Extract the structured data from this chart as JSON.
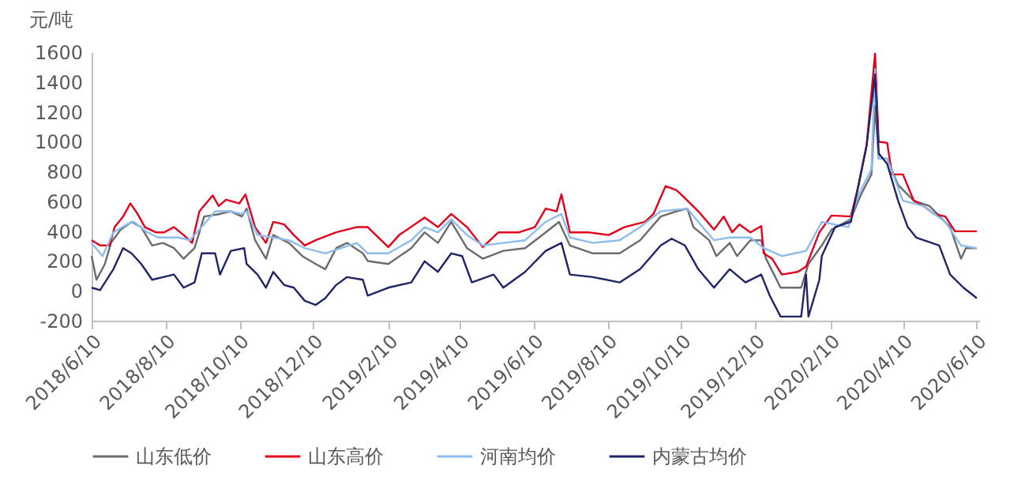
{
  "chart_data": {
    "type": "line",
    "ylabel": "元/吨",
    "xlim": [
      "2018-06-10",
      "2020-06-12"
    ],
    "xticks": [
      {
        "value": "2018-06-10",
        "label": "2018/6/10"
      },
      {
        "value": "2018-08-10",
        "label": "2018/8/10"
      },
      {
        "value": "2018-10-10",
        "label": "2018/10/10"
      },
      {
        "value": "2018-12-10",
        "label": "2018/12/10"
      },
      {
        "value": "2019-02-10",
        "label": "2019/2/10"
      },
      {
        "value": "2019-04-10",
        "label": "2019/4/10"
      },
      {
        "value": "2019-06-10",
        "label": "2019/6/10"
      },
      {
        "value": "2019-08-10",
        "label": "2019/8/10"
      },
      {
        "value": "2019-10-10",
        "label": "2019/10/10"
      },
      {
        "value": "2019-12-10",
        "label": "2019/12/10"
      },
      {
        "value": "2020-02-10",
        "label": "2020/2/10"
      },
      {
        "value": "2020-04-10",
        "label": "2020/4/10"
      },
      {
        "value": "2020-06-10",
        "label": "2020/6/10"
      }
    ],
    "ylim": [
      -200,
      1600
    ],
    "yticks": [
      -200,
      0,
      200,
      400,
      600,
      800,
      1000,
      1200,
      1400,
      1600
    ],
    "grid": false,
    "legend": "bottom",
    "marker": "none",
    "line_style": "solid",
    "series": [
      {
        "name": "山东低价",
        "color": "#6b6b6b",
        "x": [
          "2018-06-10",
          "2018-06-14",
          "2018-06-21",
          "2018-06-26",
          "2018-07-04",
          "2018-07-13",
          "2018-07-21",
          "2018-07-30",
          "2018-08-08",
          "2018-08-17",
          "2018-08-25",
          "2018-09-03",
          "2018-09-11",
          "2018-09-24",
          "2018-10-03",
          "2018-10-12",
          "2018-10-16",
          "2018-10-23",
          "2018-11-01",
          "2018-11-07",
          "2018-11-20",
          "2018-12-01",
          "2018-12-12",
          "2018-12-20",
          "2018-12-29",
          "2019-01-07",
          "2019-01-20",
          "2019-01-24",
          "2019-02-10",
          "2019-03-01",
          "2019-03-12",
          "2019-03-23",
          "2019-04-03",
          "2019-04-16",
          "2019-04-29",
          "2019-05-16",
          "2019-06-03",
          "2019-06-20",
          "2019-07-01",
          "2019-07-10",
          "2019-07-29",
          "2019-08-20",
          "2019-09-06",
          "2019-09-23",
          "2019-10-06",
          "2019-10-15",
          "2019-10-20",
          "2019-11-02",
          "2019-11-08",
          "2019-11-19",
          "2019-11-25",
          "2019-12-06",
          "2019-12-15",
          "2019-12-19",
          "2019-12-31",
          "2020-01-17",
          "2020-01-23",
          "2020-02-03",
          "2020-02-11",
          "2020-02-27",
          "2020-03-06",
          "2020-03-15",
          "2020-03-18",
          "2020-03-21",
          "2020-03-28",
          "2020-04-06",
          "2020-04-19",
          "2020-05-02",
          "2020-05-19",
          "2020-05-28",
          "2020-06-01",
          "2020-06-10"
        ],
        "values": [
          233,
          74,
          180,
          321,
          410,
          462,
          427,
          304,
          321,
          286,
          215,
          286,
          498,
          515,
          533,
          498,
          551,
          339,
          215,
          374,
          321,
          233,
          180,
          145,
          286,
          321,
          251,
          200,
          180,
          286,
          392,
          321,
          462,
          286,
          215,
          268,
          286,
          392,
          462,
          304,
          251,
          251,
          339,
          498,
          533,
          551,
          427,
          339,
          233,
          321,
          233,
          339,
          339,
          215,
          21,
          21,
          180,
          304,
          410,
          480,
          639,
          780,
          1239,
          886,
          886,
          710,
          604,
          568,
          427,
          215,
          286,
          286
        ]
      },
      {
        "name": "山东高价",
        "color": "#e3001b",
        "x": [
          "2018-06-10",
          "2018-06-17",
          "2018-06-25",
          "2018-06-29",
          "2018-07-06",
          "2018-07-12",
          "2018-07-18",
          "2018-07-24",
          "2018-08-02",
          "2018-08-09",
          "2018-08-17",
          "2018-08-25",
          "2018-09-01",
          "2018-09-07",
          "2018-09-18",
          "2018-09-23",
          "2018-09-29",
          "2018-10-10",
          "2018-10-15",
          "2018-10-23",
          "2018-11-01",
          "2018-11-07",
          "2018-11-16",
          "2018-11-24",
          "2018-12-03",
          "2018-12-12",
          "2018-12-29",
          "2019-01-15",
          "2019-01-24",
          "2019-02-10",
          "2019-02-19",
          "2019-03-12",
          "2019-03-23",
          "2019-04-03",
          "2019-04-16",
          "2019-04-29",
          "2019-05-12",
          "2019-05-29",
          "2019-06-11",
          "2019-06-20",
          "2019-06-29",
          "2019-07-03",
          "2019-07-10",
          "2019-07-25",
          "2019-08-11",
          "2019-08-24",
          "2019-09-10",
          "2019-09-17",
          "2019-09-27",
          "2019-10-06",
          "2019-10-13",
          "2019-10-24",
          "2019-11-06",
          "2019-11-14",
          "2019-11-21",
          "2019-11-27",
          "2019-12-06",
          "2019-12-15",
          "2019-12-17",
          "2019-12-24",
          "2020-01-01",
          "2020-01-14",
          "2020-01-21",
          "2020-02-01",
          "2020-02-11",
          "2020-02-27",
          "2020-03-04",
          "2020-03-11",
          "2020-03-18",
          "2020-03-21",
          "2020-03-28",
          "2020-04-01",
          "2020-04-10",
          "2020-04-19",
          "2020-04-27",
          "2020-05-06",
          "2020-05-15",
          "2020-05-23",
          "2020-06-10"
        ],
        "values": [
          339,
          304,
          304,
          427,
          498,
          586,
          515,
          427,
          392,
          392,
          427,
          374,
          321,
          533,
          639,
          568,
          611,
          586,
          646,
          427,
          321,
          462,
          445,
          374,
          304,
          339,
          392,
          427,
          427,
          293,
          374,
          491,
          427,
          515,
          427,
          293,
          392,
          392,
          427,
          551,
          533,
          646,
          392,
          392,
          374,
          427,
          462,
          515,
          702,
          674,
          621,
          533,
          410,
          498,
          392,
          445,
          392,
          434,
          251,
          215,
          109,
          127,
          162,
          392,
          505,
          498,
          692,
          974,
          1590,
          999,
          992,
          780,
          780,
          604,
          568,
          515,
          498,
          399,
          399
        ]
      },
      {
        "name": "河南均价",
        "color": "#8dbdec",
        "x": [
          "2018-06-10",
          "2018-06-19",
          "2018-06-28",
          "2018-07-09",
          "2018-07-15",
          "2018-07-26",
          "2018-08-04",
          "2018-08-21",
          "2018-08-30",
          "2018-09-07",
          "2018-09-20",
          "2018-10-03",
          "2018-10-12",
          "2018-10-16",
          "2018-10-25",
          "2018-11-07",
          "2018-11-20",
          "2018-12-03",
          "2018-12-20",
          "2019-01-02",
          "2019-01-15",
          "2019-01-24",
          "2019-02-10",
          "2019-03-01",
          "2019-03-12",
          "2019-03-23",
          "2019-04-03",
          "2019-04-16",
          "2019-04-29",
          "2019-05-16",
          "2019-06-03",
          "2019-06-20",
          "2019-07-03",
          "2019-07-10",
          "2019-07-29",
          "2019-08-20",
          "2019-09-06",
          "2019-09-23",
          "2019-10-15",
          "2019-10-24",
          "2019-11-06",
          "2019-11-19",
          "2019-12-06",
          "2019-12-17",
          "2020-01-01",
          "2020-01-21",
          "2020-02-03",
          "2020-02-25",
          "2020-03-04",
          "2020-03-15",
          "2020-03-18",
          "2020-03-21",
          "2020-03-28",
          "2020-04-10",
          "2020-04-27",
          "2020-05-15",
          "2020-05-28",
          "2020-06-10"
        ],
        "values": [
          321,
          233,
          392,
          445,
          462,
          392,
          357,
          357,
          339,
          410,
          533,
          533,
          515,
          533,
          374,
          357,
          339,
          286,
          251,
          286,
          321,
          251,
          251,
          339,
          427,
          392,
          480,
          374,
          304,
          321,
          339,
          462,
          515,
          357,
          321,
          339,
          427,
          533,
          551,
          462,
          339,
          357,
          357,
          286,
          233,
          268,
          462,
          427,
          639,
          815,
          1486,
          886,
          886,
          604,
          568,
          462,
          304,
          286
        ]
      },
      {
        "name": "内蒙古均价",
        "color": "#1f2466",
        "x": [
          "2018-06-10",
          "2018-06-17",
          "2018-06-28",
          "2018-07-06",
          "2018-07-13",
          "2018-07-21",
          "2018-07-30",
          "2018-08-08",
          "2018-08-17",
          "2018-08-25",
          "2018-09-03",
          "2018-09-09",
          "2018-09-20",
          "2018-09-24",
          "2018-10-03",
          "2018-10-14",
          "2018-10-16",
          "2018-10-25",
          "2018-11-01",
          "2018-11-07",
          "2018-11-16",
          "2018-11-24",
          "2018-12-03",
          "2018-12-12",
          "2018-12-20",
          "2018-12-29",
          "2019-01-07",
          "2019-01-20",
          "2019-01-24",
          "2019-02-10",
          "2019-03-01",
          "2019-03-12",
          "2019-03-23",
          "2019-04-03",
          "2019-04-12",
          "2019-04-20",
          "2019-05-08",
          "2019-05-16",
          "2019-06-03",
          "2019-06-20",
          "2019-07-03",
          "2019-07-10",
          "2019-07-29",
          "2019-08-20",
          "2019-09-06",
          "2019-09-23",
          "2019-10-02",
          "2019-10-13",
          "2019-10-24",
          "2019-11-06",
          "2019-11-19",
          "2019-12-02",
          "2019-12-15",
          "2019-12-22",
          "2019-12-31",
          "2020-01-17",
          "2020-01-21",
          "2020-01-23",
          "2020-02-01",
          "2020-02-03",
          "2020-02-14",
          "2020-02-27",
          "2020-03-11",
          "2020-03-18",
          "2020-03-21",
          "2020-03-28",
          "2020-04-06",
          "2020-04-14",
          "2020-04-21",
          "2020-05-10",
          "2020-05-19",
          "2020-05-30",
          "2020-06-10"
        ],
        "values": [
          21,
          4,
          145,
          286,
          251,
          180,
          74,
          92,
          109,
          21,
          56,
          251,
          251,
          109,
          268,
          286,
          180,
          109,
          21,
          127,
          39,
          21,
          -67,
          -95,
          -49,
          39,
          92,
          74,
          -32,
          21,
          56,
          198,
          127,
          251,
          233,
          56,
          109,
          21,
          127,
          268,
          321,
          109,
          92,
          56,
          145,
          304,
          349,
          304,
          145,
          21,
          145,
          56,
          109,
          -32,
          -173,
          -173,
          109,
          -173,
          74,
          233,
          427,
          462,
          974,
          1451,
          921,
          851,
          604,
          427,
          357,
          304,
          109,
          21,
          -49
        ]
      }
    ]
  }
}
